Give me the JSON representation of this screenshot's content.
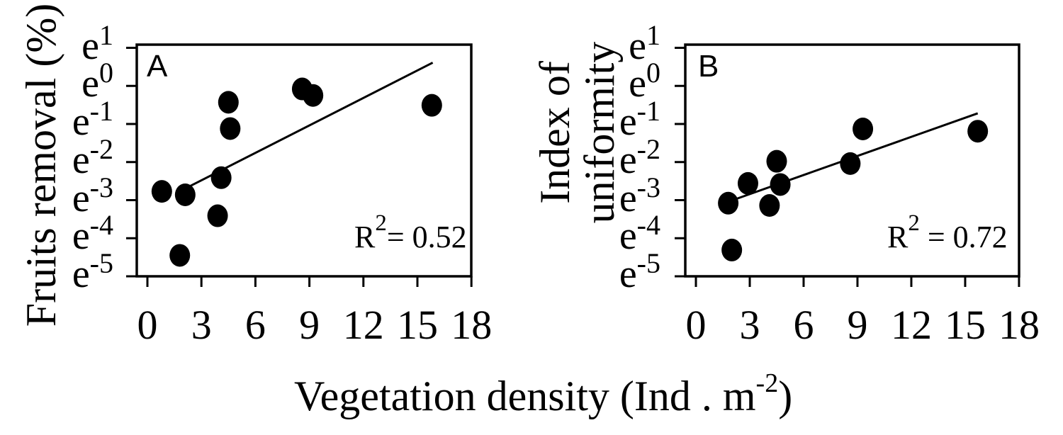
{
  "figure_texts": {
    "panel_a_letter": "A",
    "panel_b_letter": "B",
    "ylabel_a": "Fruits removal (%)",
    "ylabel_b_line1": "Index of",
    "ylabel_b_line2": "uniformity",
    "xlabel_pre": "Vegetation density (Ind . m",
    "xlabel_sup": "-2",
    "xlabel_post": ")",
    "r2_a_base": "R",
    "r2_a_sup": "2",
    "r2_a_rest": "= 0.52",
    "r2_b_base": "R",
    "r2_b_sup": "2",
    "r2_b_rest": " = 0.72"
  },
  "colors": {
    "ink": "#000000",
    "background": "#ffffff"
  },
  "chart_data": [
    {
      "type": "scatter",
      "panel": "A",
      "title": "",
      "xlabel": "Vegetation density (Ind . m^-2)",
      "ylabel": "Fruits removal (%)",
      "y_scale": "natural log (tick labels are e^n)",
      "y_tick_base": "e",
      "y_tick_exponents": [
        1,
        0,
        -1,
        -2,
        -3,
        -4,
        -5
      ],
      "x_ticks": [
        0,
        3,
        6,
        9,
        12,
        15,
        18
      ],
      "xlim": [
        -0.6,
        18
      ],
      "ylim_ln": [
        -5.05,
        1.08
      ],
      "grid": false,
      "marker": "filled-black-circle",
      "points_format": "[vegetation_density, ln(fruits_removal)]",
      "points": [
        [
          0.8,
          -2.77
        ],
        [
          2.1,
          -2.86
        ],
        [
          1.8,
          -4.45
        ],
        [
          3.9,
          -3.41
        ],
        [
          4.1,
          -2.41
        ],
        [
          4.5,
          -0.43
        ],
        [
          4.6,
          -1.12
        ],
        [
          8.6,
          -0.08
        ],
        [
          9.2,
          -0.25
        ],
        [
          15.8,
          -0.51
        ]
      ],
      "fit_line": {
        "x1": 2.25,
        "y1": -2.66,
        "x2": 15.85,
        "y2": 0.61
      },
      "r_squared": 0.52,
      "r_squared_text": "R2= 0.52"
    },
    {
      "type": "scatter",
      "panel": "B",
      "title": "",
      "xlabel": "Vegetation density (Ind . m^-2)",
      "ylabel": "Index of uniformity",
      "y_scale": "natural log (tick labels are e^n)",
      "y_tick_base": "e",
      "y_tick_exponents": [
        1,
        0,
        -1,
        -2,
        -3,
        -4,
        -5
      ],
      "x_ticks": [
        0,
        3,
        6,
        9,
        12,
        15,
        18
      ],
      "xlim": [
        -0.6,
        18
      ],
      "ylim_ln": [
        -5.05,
        1.08
      ],
      "grid": false,
      "marker": "filled-black-circle",
      "points_format": "[vegetation_density, ln(index_of_uniformity)]",
      "points": [
        [
          1.8,
          -3.08
        ],
        [
          2.9,
          -2.56
        ],
        [
          2.0,
          -4.31
        ],
        [
          4.1,
          -3.14
        ],
        [
          4.7,
          -2.59
        ],
        [
          4.5,
          -1.98
        ],
        [
          8.6,
          -2.04
        ],
        [
          9.3,
          -1.13
        ],
        [
          15.7,
          -1.19
        ]
      ],
      "fit_line": {
        "x1": 2.05,
        "y1": -3.0,
        "x2": 15.7,
        "y2": -0.72
      },
      "r_squared": 0.72,
      "r_squared_text": "R2 = 0.72"
    }
  ]
}
